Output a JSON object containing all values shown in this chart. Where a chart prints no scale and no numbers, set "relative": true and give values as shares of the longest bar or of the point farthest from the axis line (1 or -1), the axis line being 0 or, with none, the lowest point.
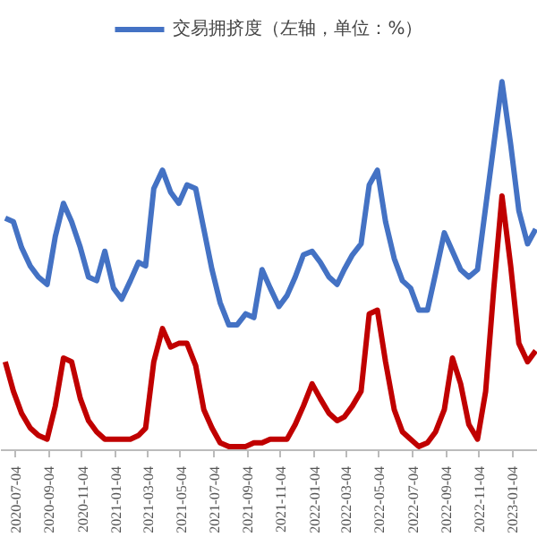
{
  "chart_data": {
    "type": "line",
    "relative": true,
    "legend": "top",
    "line_style": "solid",
    "x": [
      "2020-06-16",
      "2020-07-01",
      "2020-07-16",
      "2020-08-01",
      "2020-08-16",
      "2020-09-01",
      "2020-09-16",
      "2020-10-01",
      "2020-10-16",
      "2020-11-01",
      "2020-11-16",
      "2020-12-01",
      "2020-12-16",
      "2021-01-01",
      "2021-01-16",
      "2021-02-01",
      "2021-02-16",
      "2021-03-01",
      "2021-03-16",
      "2021-04-01",
      "2021-04-16",
      "2021-05-01",
      "2021-05-16",
      "2021-06-01",
      "2021-06-16",
      "2021-07-01",
      "2021-07-16",
      "2021-08-01",
      "2021-08-16",
      "2021-09-01",
      "2021-09-16",
      "2021-10-01",
      "2021-10-16",
      "2021-11-01",
      "2021-11-16",
      "2021-12-01",
      "2021-12-16",
      "2022-01-01",
      "2022-01-16",
      "2022-02-01",
      "2022-02-16",
      "2022-03-01",
      "2022-03-16",
      "2022-04-01",
      "2022-04-16",
      "2022-05-01",
      "2022-05-16",
      "2022-06-01",
      "2022-06-16",
      "2022-07-01",
      "2022-07-16",
      "2022-08-01",
      "2022-08-16",
      "2022-09-01",
      "2022-09-16",
      "2022-10-01",
      "2022-10-16",
      "2022-11-01",
      "2022-11-16",
      "2022-12-01",
      "2022-12-16",
      "2023-01-01",
      "2023-01-16",
      "2023-02-01",
      "2023-02-16"
    ],
    "xlim": [
      "2020-06-08",
      "2023-02-20"
    ],
    "xticks": [
      "2020-07-04",
      "2020-09-04",
      "2020-11-04",
      "2021-01-04",
      "2021-03-04",
      "2021-05-04",
      "2021-07-04",
      "2021-09-04",
      "2021-11-04",
      "2022-01-04",
      "2022-03-04",
      "2022-05-04",
      "2022-07-04",
      "2022-09-04",
      "2022-11-04",
      "2023-01-04"
    ],
    "series": [
      {
        "name": "交易拥挤度（左轴，单位：%）",
        "color": "#4472c4",
        "values": [
          0.63,
          0.62,
          0.55,
          0.5,
          0.47,
          0.45,
          0.58,
          0.67,
          0.62,
          0.55,
          0.47,
          0.46,
          0.54,
          0.44,
          0.41,
          0.46,
          0.51,
          0.5,
          0.71,
          0.76,
          0.7,
          0.67,
          0.72,
          0.71,
          0.6,
          0.49,
          0.4,
          0.34,
          0.34,
          0.37,
          0.36,
          0.49,
          0.44,
          0.39,
          0.42,
          0.47,
          0.53,
          0.54,
          0.51,
          0.47,
          0.45,
          0.49,
          0.53,
          0.56,
          0.72,
          0.76,
          0.62,
          0.52,
          0.46,
          0.44,
          0.38,
          0.38,
          0.48,
          0.59,
          0.54,
          0.49,
          0.47,
          0.49,
          0.66,
          0.83,
          1.0,
          0.83,
          0.65,
          0.56,
          0.6
        ]
      },
      {
        "color": "#c00000",
        "values": [
          0.24,
          0.16,
          0.1,
          0.06,
          0.04,
          0.03,
          0.12,
          0.25,
          0.24,
          0.14,
          0.08,
          0.05,
          0.03,
          0.03,
          0.03,
          0.03,
          0.04,
          0.06,
          0.24,
          0.33,
          0.28,
          0.29,
          0.29,
          0.23,
          0.11,
          0.06,
          0.02,
          0.01,
          0.01,
          0.01,
          0.02,
          0.02,
          0.03,
          0.03,
          0.03,
          0.07,
          0.12,
          0.18,
          0.14,
          0.1,
          0.08,
          0.09,
          0.12,
          0.16,
          0.37,
          0.38,
          0.24,
          0.11,
          0.05,
          0.03,
          0.01,
          0.02,
          0.05,
          0.11,
          0.25,
          0.18,
          0.07,
          0.03,
          0.16,
          0.44,
          0.69,
          0.5,
          0.29,
          0.24,
          0.27
        ]
      }
    ]
  }
}
